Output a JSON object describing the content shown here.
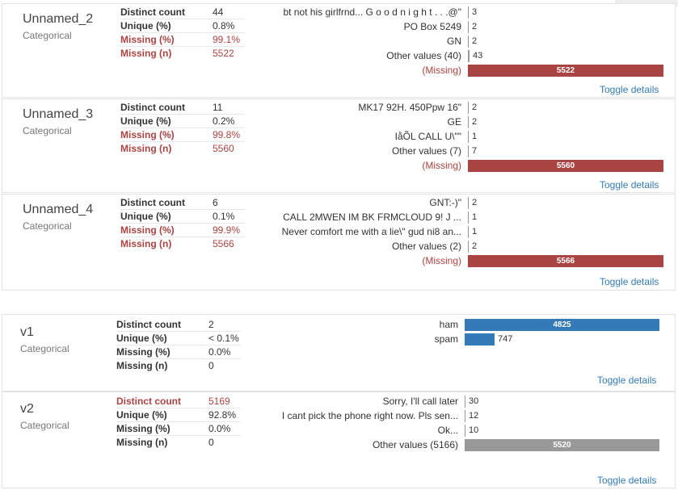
{
  "colors": {
    "missing": "#a94442",
    "blue": "#337ab7",
    "gray": "#999999"
  },
  "variables": [
    {
      "name": "Unnamed_2",
      "type": "Categorical",
      "stats": [
        {
          "label": "Distinct count",
          "value": "44",
          "warn": false
        },
        {
          "label": "Unique (%)",
          "value": "0.8%",
          "warn": false
        },
        {
          "label": "Missing (%)",
          "value": "99.1%",
          "warn": true
        },
        {
          "label": "Missing (n)",
          "value": "5522",
          "warn": true
        }
      ],
      "freq": [
        {
          "label": "bt not his girlfrnd... G o o d n i g h t . . .@\"",
          "count": 3
        },
        {
          "label": "PO Box 5249",
          "count": 2
        },
        {
          "label": "GN",
          "count": 2
        },
        {
          "label": "Other values (40)",
          "count": 43
        },
        {
          "label": "(Missing)",
          "count": 5522,
          "missing": true
        }
      ],
      "toggle": "Toggle details"
    },
    {
      "name": "Unnamed_3",
      "type": "Categorical",
      "stats": [
        {
          "label": "Distinct count",
          "value": "11",
          "warn": false
        },
        {
          "label": "Unique (%)",
          "value": "0.2%",
          "warn": false
        },
        {
          "label": "Missing (%)",
          "value": "99.8%",
          "warn": true
        },
        {
          "label": "Missing (n)",
          "value": "5560",
          "warn": true
        }
      ],
      "freq": [
        {
          "label": "MK17 92H. 450Ppw 16\"",
          "count": 2
        },
        {
          "label": "GE",
          "count": 2
        },
        {
          "label": "IåÕL CALL U\\\"\"",
          "count": 1
        },
        {
          "label": "Other values (7)",
          "count": 7
        },
        {
          "label": "(Missing)",
          "count": 5560,
          "missing": true
        }
      ],
      "toggle": "Toggle details"
    },
    {
      "name": "Unnamed_4",
      "type": "Categorical",
      "stats": [
        {
          "label": "Distinct count",
          "value": "6",
          "warn": false
        },
        {
          "label": "Unique (%)",
          "value": "0.1%",
          "warn": false
        },
        {
          "label": "Missing (%)",
          "value": "99.9%",
          "warn": true
        },
        {
          "label": "Missing (n)",
          "value": "5566",
          "warn": true
        }
      ],
      "freq": [
        {
          "label": "GNT:-)\"",
          "count": 2
        },
        {
          "label": "CALL 2MWEN IM BK FRMCLOUD 9! J ...",
          "count": 1
        },
        {
          "label": "Never comfort me with a lie\\\" gud ni8 an...",
          "count": 1
        },
        {
          "label": "Other values (2)",
          "count": 2
        },
        {
          "label": "(Missing)",
          "count": 5566,
          "missing": true
        }
      ],
      "toggle": "Toggle details"
    },
    {
      "name": "v1",
      "type": "Categorical",
      "stats": [
        {
          "label": "Distinct count",
          "value": "2",
          "warn": false
        },
        {
          "label": "Unique (%)",
          "value": "< 0.1%",
          "warn": false
        },
        {
          "label": "Missing (%)",
          "value": "0.0%",
          "warn": false
        },
        {
          "label": "Missing (n)",
          "value": "0",
          "warn": false
        }
      ],
      "freq": [
        {
          "label": "ham",
          "count": 4825
        },
        {
          "label": "spam",
          "count": 747
        }
      ],
      "toggle": "Toggle details"
    },
    {
      "name": "v2",
      "type": "Categorical",
      "stats": [
        {
          "label": "Distinct count",
          "value": "5169",
          "warn": true
        },
        {
          "label": "Unique (%)",
          "value": "92.8%",
          "warn": false
        },
        {
          "label": "Missing (%)",
          "value": "0.0%",
          "warn": false
        },
        {
          "label": "Missing (n)",
          "value": "0",
          "warn": false
        }
      ],
      "freq": [
        {
          "label": "Sorry, I'll call later",
          "count": 30
        },
        {
          "label": "I cant pick the phone right now. Pls sen...",
          "count": 12
        },
        {
          "label": "Ok...",
          "count": 10
        },
        {
          "label": "Other values (5166)",
          "count": 5520,
          "other": true
        }
      ],
      "toggle": "Toggle details"
    }
  ]
}
